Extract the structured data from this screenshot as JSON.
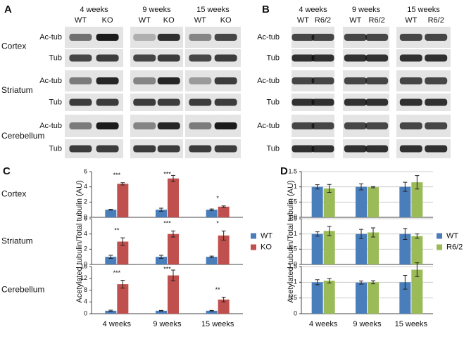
{
  "blots": [
    {
      "panel": "A",
      "timepoints": [
        "4 weeks",
        "9 weeks",
        "15 weeks"
      ],
      "genotypes": [
        "WT",
        "KO"
      ],
      "regions": [
        "Cortex",
        "Striatum",
        "Cerebellum"
      ],
      "bands": [
        "Ac-tub",
        "Tub"
      ]
    },
    {
      "panel": "B",
      "timepoints": [
        "4 weeks",
        "9 weeks",
        "15 weeks"
      ],
      "genotypes": [
        "WT",
        "R6/2"
      ],
      "bands": [
        "Ac-tub",
        "Tub"
      ]
    }
  ],
  "chart_data": [
    {
      "type": "bar",
      "panel_label": "C",
      "row_label": "Cortex",
      "categories": [
        null,
        null,
        null
      ],
      "ylim": [
        0,
        6
      ],
      "yticks": [
        0,
        2,
        4,
        6
      ],
      "grid": false,
      "annotations": [
        "***",
        "***",
        "*"
      ],
      "series": [
        {
          "color": "#4a7ebb",
          "values": [
            1,
            1,
            1
          ],
          "errors": [
            0.05,
            0.2,
            0.1
          ]
        },
        {
          "color": "#c0504d",
          "values": [
            4.4,
            5.1,
            1.4
          ],
          "errors": [
            0.15,
            0.4,
            0.1
          ]
        }
      ]
    },
    {
      "type": "bar",
      "row_label": "Striatum",
      "ylabel": "Acetylated tubulin/Total tubulin (AU)",
      "categories": [
        null,
        null,
        null
      ],
      "ylim": [
        0,
        6
      ],
      "yticks": [
        0,
        2,
        4,
        6
      ],
      "grid": false,
      "annotations": [
        "**",
        "***",
        "*"
      ],
      "series": [
        {
          "name": "WT",
          "color": "#4a7ebb",
          "values": [
            1,
            1,
            1
          ],
          "errors": [
            0.2,
            0.2,
            0.1
          ]
        },
        {
          "name": "KO",
          "color": "#c0504d",
          "values": [
            3.0,
            4.0,
            3.8
          ],
          "errors": [
            0.5,
            0.4,
            0.6
          ]
        }
      ]
    },
    {
      "type": "bar",
      "row_label": "Cerebellum",
      "categories": [
        "4 weeks",
        "9 weeks",
        "15 weeks"
      ],
      "ylim": [
        0,
        16
      ],
      "yticks": [
        0,
        4,
        8,
        12,
        16
      ],
      "grid": false,
      "annotations": [
        "***",
        "***",
        "**"
      ],
      "series": [
        {
          "color": "#4a7ebb",
          "values": [
            1,
            1,
            1
          ],
          "errors": [
            0.2,
            0.1,
            0.1
          ]
        },
        {
          "color": "#c0504d",
          "values": [
            10,
            13,
            4.8
          ],
          "errors": [
            1.3,
            1.8,
            0.8
          ]
        }
      ]
    },
    {
      "type": "bar",
      "panel_label": "D",
      "categories": [
        null,
        null,
        null
      ],
      "ylim": [
        0,
        1.5
      ],
      "yticks": [
        0,
        0.5,
        1,
        1.5
      ],
      "grid": true,
      "series": [
        {
          "color": "#4a7ebb",
          "values": [
            1.0,
            1.0,
            1.0
          ],
          "errors": [
            0.07,
            0.1,
            0.15
          ]
        },
        {
          "color": "#9bbb59",
          "values": [
            0.95,
            0.99,
            1.15
          ],
          "errors": [
            0.13,
            0.02,
            0.22
          ]
        }
      ]
    },
    {
      "type": "bar",
      "ylabel": "Acetylated tubulin/Total tubulin (AU)",
      "categories": [
        null,
        null,
        null
      ],
      "ylim": [
        0,
        1.5
      ],
      "yticks": [
        0,
        0.5,
        1,
        1.5
      ],
      "grid": true,
      "series": [
        {
          "name": "WT",
          "color": "#4a7ebb",
          "values": [
            1,
            1,
            1
          ],
          "errors": [
            0.07,
            0.15,
            0.18
          ]
        },
        {
          "name": "R6/2",
          "color": "#9bbb59",
          "values": [
            1.1,
            1.05,
            0.93
          ],
          "errors": [
            0.15,
            0.15,
            0.07
          ]
        }
      ]
    },
    {
      "type": "bar",
      "categories": [
        "4 weeks",
        "9 weeks",
        "15 weeks"
      ],
      "ylim": [
        0,
        1.5
      ],
      "yticks": [
        0,
        0.5,
        1,
        1.5
      ],
      "grid": true,
      "series": [
        {
          "color": "#4a7ebb",
          "values": [
            1.0,
            0.99,
            1.0
          ],
          "errors": [
            0.08,
            0.05,
            0.22
          ]
        },
        {
          "color": "#9bbb59",
          "values": [
            1.05,
            1.0,
            1.4
          ],
          "errors": [
            0.07,
            0.05,
            0.22
          ]
        }
      ]
    }
  ]
}
